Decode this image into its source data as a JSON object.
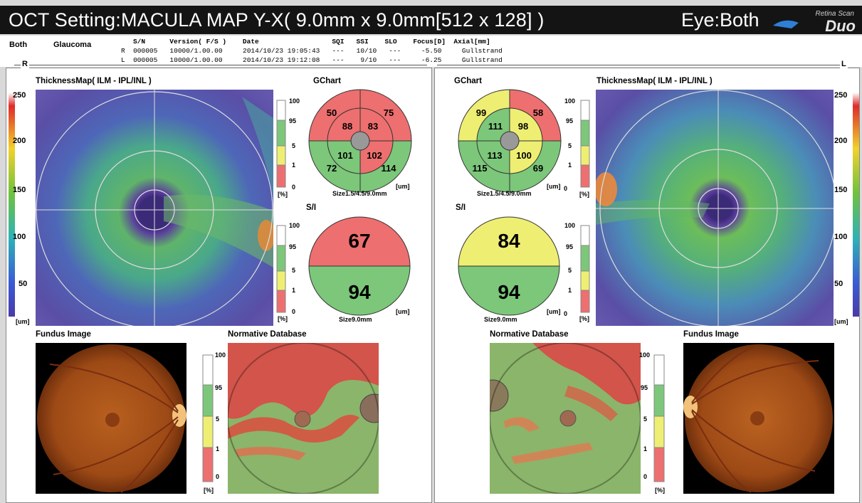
{
  "title": "OCT Setting:MACULA MAP Y-X( 9.0mm x 9.0mm[512 x 128] )",
  "eye_label": "Eye:Both",
  "logo": {
    "top": "Retina Scan",
    "brand": "Duo"
  },
  "info": {
    "both": "Both",
    "diagnosis": "Glaucoma",
    "headers": "S/N      Version( F/S )    Date                  SQI   SSI    SLO    Focus[D]  Axial[mm]",
    "row_r": "R  000005   10000/1.00.00     2014/10/23 19:05:43   ---   10/10   ---     -5.50     Gullstrand",
    "row_l": "L  000005   10000/1.00.00     2014/10/23 19:12:08   ---    9/10   ---     -6.25     Gullstrand"
  },
  "right_eye_label": "R",
  "left_eye_label": "L",
  "sections": {
    "thickness_map": "ThicknessMap( ILM - IPL/INL )",
    "gchart": "GChart",
    "si": "S/I",
    "fundus": "Fundus Image",
    "normative": "Normative Database"
  },
  "thickness_scale": [
    "250",
    "200",
    "150",
    "100",
    "50",
    "[um]"
  ],
  "percent_scale": [
    "100",
    "95",
    "5",
    "1",
    "0",
    "[%]"
  ],
  "um_unit": "[um]",
  "gchart_size": "Size1.5/4.5/9.0mm",
  "si_size": "Size9.0mm",
  "right": {
    "gchart": {
      "outer_tl": "50",
      "outer_tr": "75",
      "outer_bl": "72",
      "outer_br": "114",
      "inner_tl": "88",
      "inner_tr": "83",
      "inner_bl": "101",
      "inner_br": "102"
    },
    "si": {
      "superior": "67",
      "inferior": "94"
    }
  },
  "left": {
    "gchart": {
      "outer_tl": "99",
      "outer_tr": "58",
      "outer_bl": "115",
      "outer_br": "69",
      "inner_tl": "111",
      "inner_tr": "98",
      "inner_bl": "113",
      "inner_br": "100"
    },
    "si": {
      "superior": "84",
      "inferior": "94"
    }
  },
  "colors": {
    "red": "#ee6f6f",
    "green": "#7cc77a",
    "yellow": "#eeee73",
    "white": "#ffffff",
    "title_bg": "#141414",
    "panel_bg": "#ffffff"
  }
}
